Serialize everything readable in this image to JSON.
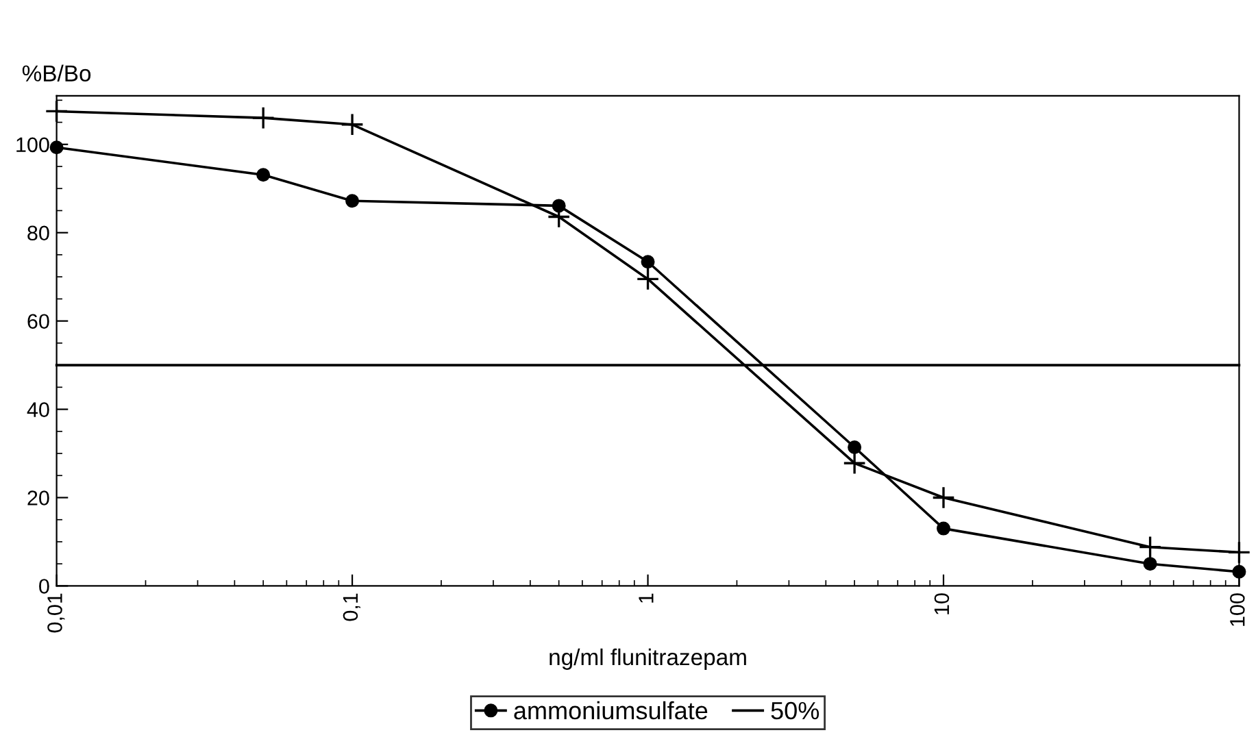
{
  "chart_data": {
    "type": "line",
    "ylabel": "%B/Bo",
    "xlabel": "ng/ml flunitrazepam",
    "log": "x",
    "x": [
      0.01,
      0.05,
      0.1,
      0.5,
      1,
      5,
      10,
      50,
      100
    ],
    "series": [
      {
        "name": "ammoniumsulfate",
        "color": "#000000",
        "marker": "circle",
        "values": [
          99.3,
          93.1,
          87.2,
          86.1,
          73.4,
          31.4,
          13.0,
          5.0,
          3.2
        ]
      },
      {
        "color": "#000000",
        "marker": "cross",
        "values": [
          107.5,
          106,
          104.5,
          83.6,
          69.5,
          27.8,
          20,
          8.8,
          7.6
        ]
      },
      {
        "name": "50%",
        "color": "#000000",
        "marker": "none",
        "x": [
          0.01,
          100
        ],
        "values": [
          50,
          50
        ]
      }
    ],
    "xlim": [
      0.01,
      100
    ],
    "xticks": [
      {
        "value": 0.01,
        "label": "0,01"
      },
      {
        "value": 0.1,
        "label": "0,1"
      },
      1,
      10,
      100
    ],
    "ylim": [
      0,
      111
    ],
    "yticks": [
      0,
      20,
      40,
      60,
      80,
      100
    ],
    "grid": false,
    "legend": "bottom",
    "line_style": "solid"
  }
}
